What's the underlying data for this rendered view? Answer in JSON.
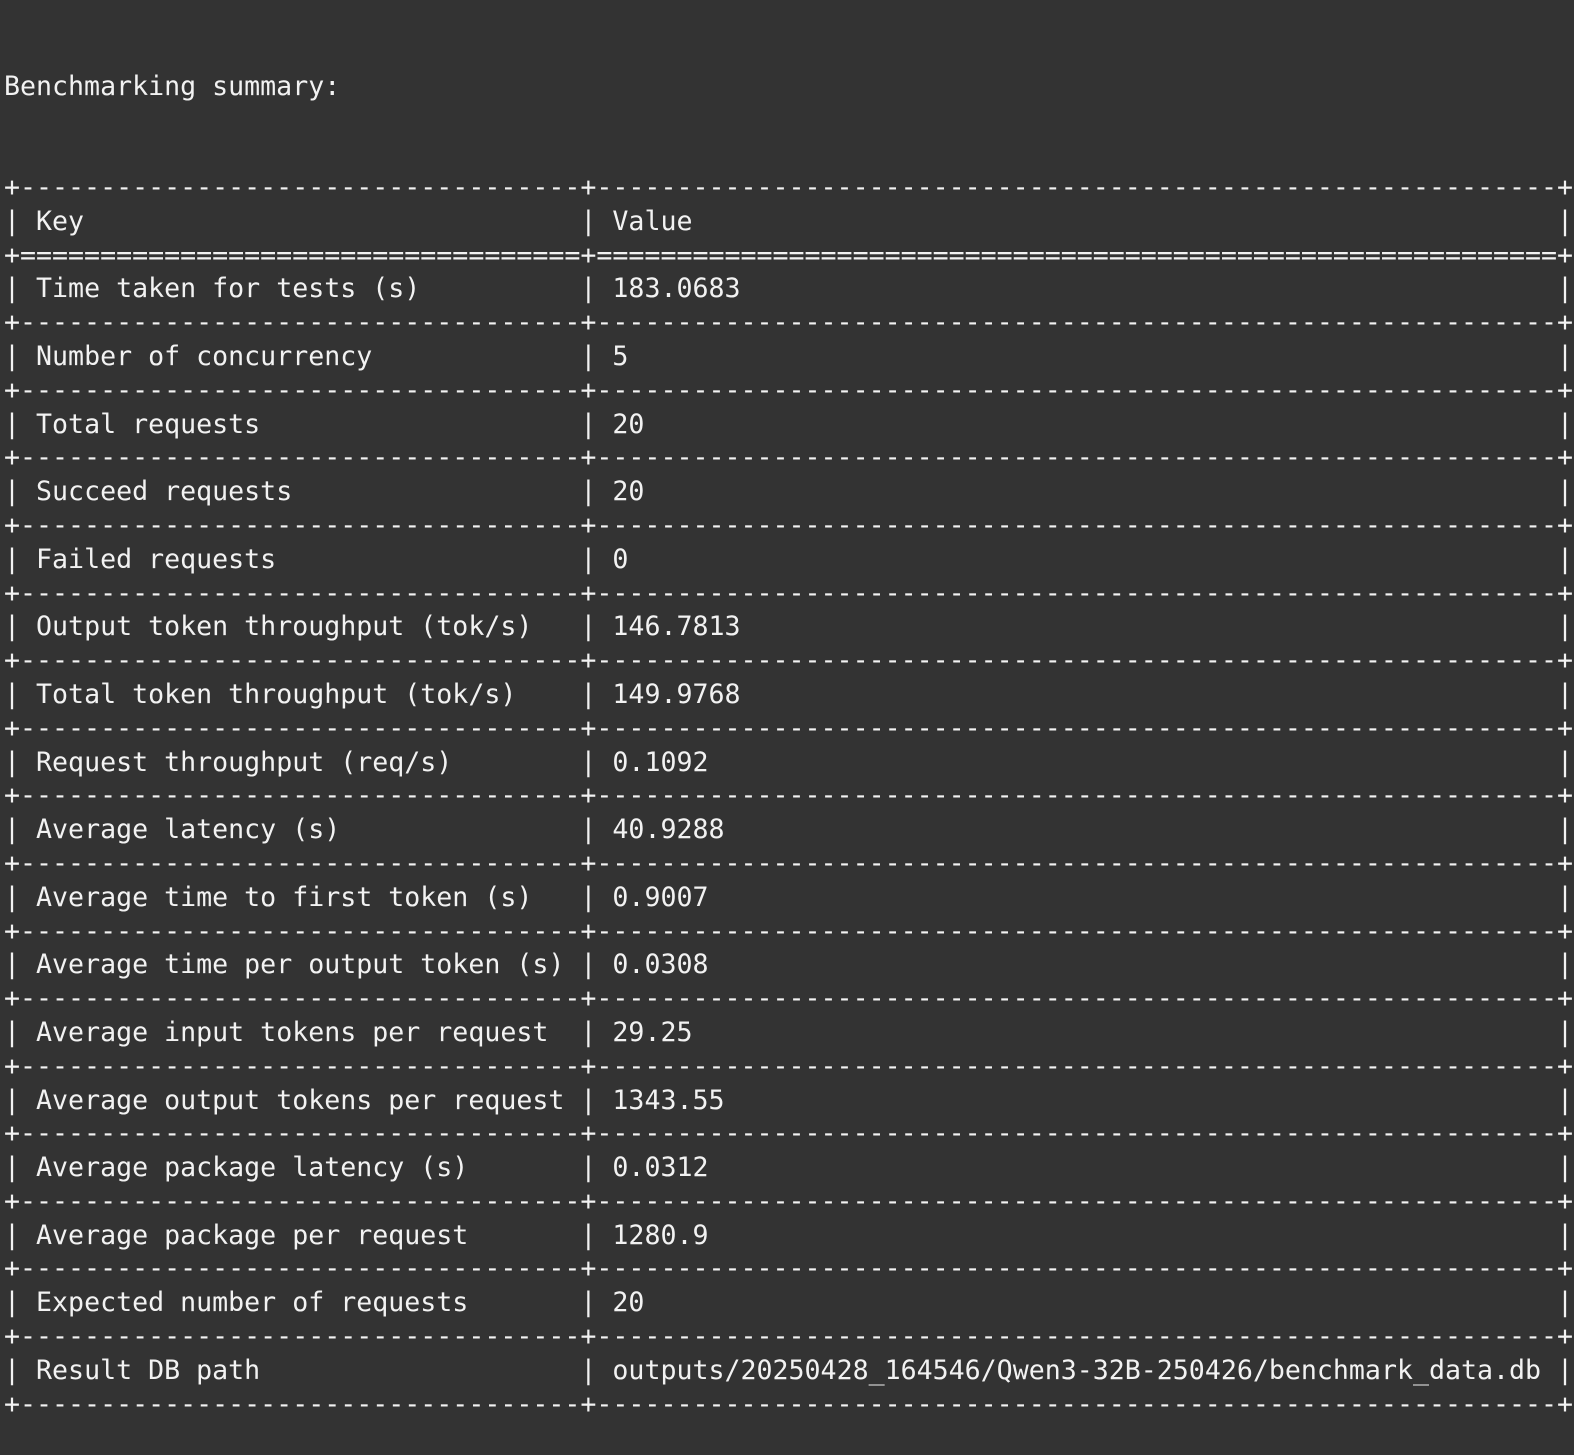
{
  "terminal": {
    "title": "Benchmarking summary:",
    "header": {
      "key": "Key",
      "value": "Value"
    },
    "rows": [
      {
        "key": "Time taken for tests (s)",
        "value": "183.0683"
      },
      {
        "key": "Number of concurrency",
        "value": "5"
      },
      {
        "key": "Total requests",
        "value": "20"
      },
      {
        "key": "Succeed requests",
        "value": "20"
      },
      {
        "key": "Failed requests",
        "value": "0"
      },
      {
        "key": "Output token throughput (tok/s)",
        "value": "146.7813"
      },
      {
        "key": "Total token throughput (tok/s)",
        "value": "149.9768"
      },
      {
        "key": "Request throughput (req/s)",
        "value": "0.1092"
      },
      {
        "key": "Average latency (s)",
        "value": "40.9288"
      },
      {
        "key": "Average time to first token (s)",
        "value": "0.9007"
      },
      {
        "key": "Average time per output token (s)",
        "value": "0.0308"
      },
      {
        "key": "Average input tokens per request",
        "value": "29.25"
      },
      {
        "key": "Average output tokens per request",
        "value": "1343.55"
      },
      {
        "key": "Average package latency (s)",
        "value": "0.0312"
      },
      {
        "key": "Average package per request",
        "value": "1280.9"
      },
      {
        "key": "Expected number of requests",
        "value": "20"
      },
      {
        "key": "Result DB path",
        "value": "outputs/20250428_164546/Qwen3-32B-250426/benchmark_data.db"
      }
    ]
  },
  "colors": {
    "background": "#333333",
    "text": "#f2f2f2"
  }
}
